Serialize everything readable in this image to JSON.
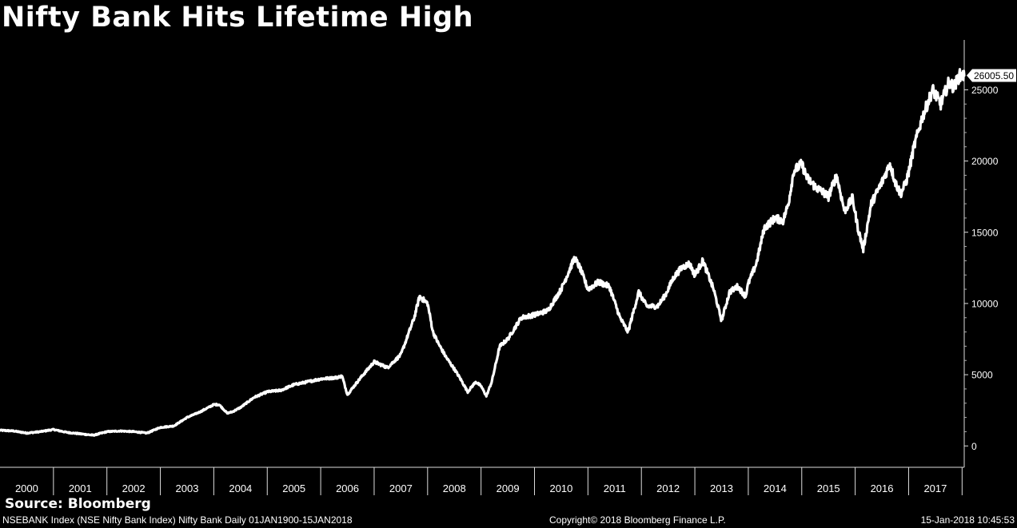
{
  "title": "Nifty Bank Hits Lifetime High",
  "source": "Source: Bloomberg",
  "footer": {
    "left": "NSEBANK Index (NSE Nifty Bank Index) Nifty Bank  Daily 01JAN1900-15JAN2018",
    "middle": "Copyright© 2018 Bloomberg Finance L.P.",
    "right": "15-Jan-2018 10:45:53"
  },
  "colors": {
    "background": "#000000",
    "line": "#ffffff",
    "text": "#ffffff"
  },
  "chart_data": {
    "type": "line",
    "title": "Nifty Bank Hits Lifetime High",
    "xlabel": "",
    "ylabel": "",
    "xlim": [
      2000.0,
      2018.04
    ],
    "ylim": [
      -1500,
      28500
    ],
    "x_tick_labels": [
      "2000",
      "2001",
      "2002",
      "2003",
      "2004",
      "2005",
      "2006",
      "2007",
      "2008",
      "2009",
      "2010",
      "2011",
      "2012",
      "2013",
      "2014",
      "2015",
      "2016",
      "2017"
    ],
    "y_ticks": [
      0,
      5000,
      10000,
      15000,
      20000,
      25000
    ],
    "last_value_label": "26005.50",
    "grid": false,
    "series": [
      {
        "x": [
          2000.0,
          2000.25,
          2000.5,
          2000.75,
          2001.0,
          2001.25,
          2001.5,
          2001.75,
          2002.0,
          2002.25,
          2002.5,
          2002.75,
          2003.0,
          2003.25,
          2003.5,
          2003.75,
          2004.0,
          2004.1,
          2004.25,
          2004.35,
          2004.5,
          2004.75,
          2005.0,
          2005.25,
          2005.5,
          2005.75,
          2006.0,
          2006.3,
          2006.4,
          2006.5,
          2006.75,
          2007.0,
          2007.25,
          2007.5,
          2007.75,
          2007.85,
          2008.0,
          2008.1,
          2008.2,
          2008.35,
          2008.5,
          2008.6,
          2008.75,
          2008.9,
          2009.0,
          2009.1,
          2009.2,
          2009.35,
          2009.5,
          2009.75,
          2010.0,
          2010.25,
          2010.5,
          2010.75,
          2010.85,
          2011.0,
          2011.2,
          2011.4,
          2011.6,
          2011.75,
          2011.95,
          2012.1,
          2012.3,
          2012.45,
          2012.6,
          2012.75,
          2012.9,
          2013.0,
          2013.15,
          2013.35,
          2013.5,
          2013.65,
          2013.8,
          2013.95,
          2014.0,
          2014.15,
          2014.3,
          2014.5,
          2014.65,
          2014.75,
          2014.85,
          2015.0,
          2015.1,
          2015.25,
          2015.4,
          2015.5,
          2015.65,
          2015.8,
          2015.95,
          2016.05,
          2016.15,
          2016.3,
          2016.5,
          2016.65,
          2016.75,
          2016.85,
          2016.95,
          2017.0,
          2017.1,
          2017.25,
          2017.45,
          2017.6,
          2017.75,
          2017.85,
          2017.95,
          2018.04
        ],
        "y": [
          1100,
          1050,
          900,
          1000,
          1150,
          950,
          850,
          750,
          1000,
          1050,
          1000,
          900,
          1300,
          1400,
          2000,
          2400,
          2900,
          2900,
          2300,
          2400,
          2700,
          3400,
          3800,
          3900,
          4300,
          4500,
          4700,
          4800,
          4900,
          3600,
          4800,
          5900,
          5500,
          6400,
          9000,
          10500,
          10000,
          8000,
          7200,
          6200,
          5400,
          4800,
          3800,
          4500,
          4200,
          3500,
          4500,
          7000,
          7500,
          9000,
          9200,
          9500,
          11000,
          13200,
          12500,
          11000,
          11500,
          11200,
          9000,
          8000,
          10800,
          9800,
          9800,
          10600,
          11800,
          12500,
          12800,
          12000,
          13000,
          11000,
          8800,
          10800,
          11200,
          10500,
          11400,
          12800,
          15300,
          16000,
          15800,
          17000,
          19300,
          19800,
          18800,
          18200,
          17800,
          17500,
          19000,
          16500,
          17400,
          15300,
          13800,
          17000,
          18500,
          19800,
          18500,
          17700,
          18500,
          19200,
          21000,
          23000,
          25000,
          24000,
          25500,
          25200,
          26000,
          26005.5
        ]
      }
    ]
  }
}
